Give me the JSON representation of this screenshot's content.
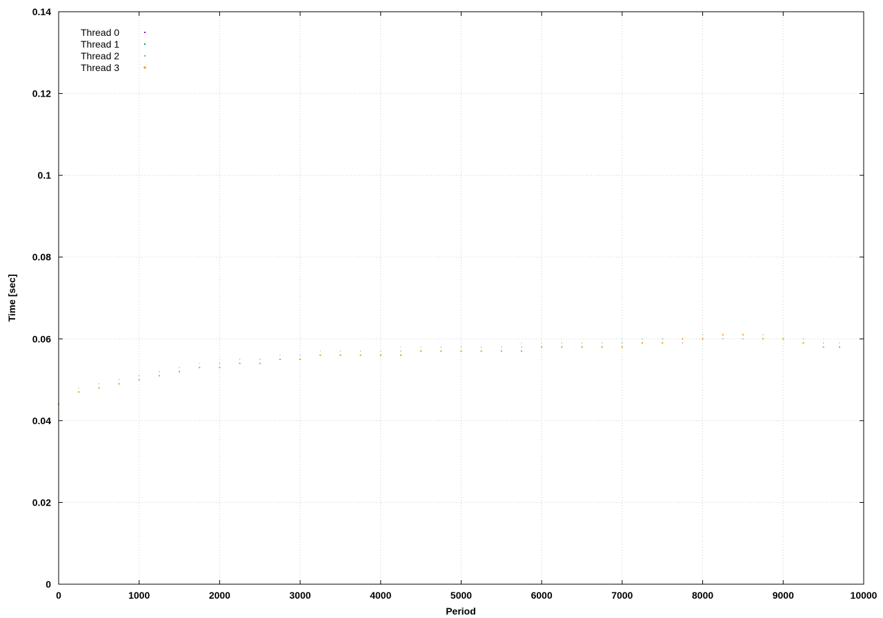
{
  "chart_data": {
    "type": "scatter",
    "title": "",
    "xlabel": "Period",
    "ylabel": "Time [sec]",
    "xlim": [
      0,
      10000
    ],
    "ylim": [
      0,
      0.14
    ],
    "x_ticks": [
      "0",
      "1000",
      "2000",
      "3000",
      "4000",
      "5000",
      "6000",
      "7000",
      "8000",
      "9000",
      "10000"
    ],
    "y_ticks": [
      "0",
      "0.02",
      "0.04",
      "0.06",
      "0.08",
      "0.1",
      "0.12",
      "0.14"
    ],
    "grid": true,
    "legend_position": "top-left",
    "series": [
      {
        "name": "Thread 0",
        "color": "#9400d3",
        "point_size": 1,
        "x": [
          0,
          250,
          500,
          750,
          1000,
          1250,
          1500,
          1750,
          2000,
          2250,
          2500,
          2750,
          3000,
          3250,
          3500,
          3750,
          4000,
          4250,
          4500,
          4750,
          5000,
          5250,
          5500,
          5750,
          6000,
          6250,
          6500,
          6750,
          7000,
          7250,
          7500,
          7750,
          8000,
          8250,
          8500,
          8750,
          9000,
          9250,
          9500,
          9700
        ],
        "y": [
          0.044,
          0.047,
          0.048,
          0.049,
          0.05,
          0.051,
          0.052,
          0.053,
          0.053,
          0.054,
          0.055,
          0.055,
          0.055,
          0.056,
          0.056,
          0.056,
          0.056,
          0.057,
          0.057,
          0.057,
          0.057,
          0.057,
          0.057,
          0.058,
          0.058,
          0.058,
          0.058,
          0.058,
          0.059,
          0.059,
          0.059,
          0.059,
          0.06,
          0.06,
          0.06,
          0.06,
          0.06,
          0.059,
          0.058,
          0.058
        ]
      },
      {
        "name": "Thread 1",
        "color": "#009e73",
        "point_size": 1,
        "x": [
          0,
          250,
          500,
          750,
          1000,
          1250,
          1500,
          1750,
          2000,
          2250,
          2500,
          2750,
          3000,
          3250,
          3500,
          3750,
          4000,
          4250,
          4500,
          4750,
          5000,
          5250,
          5500,
          5750,
          6000,
          6250,
          6500,
          6750,
          7000,
          7250,
          7500,
          7750,
          8000,
          8250,
          8500,
          8750,
          9000,
          9250,
          9500,
          9700
        ],
        "y": [
          0.045,
          0.047,
          0.049,
          0.05,
          0.051,
          0.052,
          0.053,
          0.053,
          0.054,
          0.055,
          0.055,
          0.056,
          0.056,
          0.056,
          0.057,
          0.057,
          0.057,
          0.057,
          0.057,
          0.058,
          0.058,
          0.058,
          0.058,
          0.058,
          0.058,
          0.059,
          0.059,
          0.059,
          0.059,
          0.06,
          0.06,
          0.06,
          0.061,
          0.061,
          0.061,
          0.061,
          0.06,
          0.06,
          0.059,
          0.059
        ]
      },
      {
        "name": "Thread 2",
        "color": "#56b4e9",
        "point_size": 1,
        "x": [
          0,
          250,
          500,
          750,
          1000,
          1250,
          1500,
          1750,
          2000,
          2250,
          2500,
          2750,
          3000,
          3250,
          3500,
          3750,
          4000,
          4250,
          4500,
          4750,
          5000,
          5250,
          5500,
          5750,
          6000,
          6250,
          6500,
          6750,
          7000,
          7250,
          7500,
          7750,
          8000,
          8250,
          8500,
          8750,
          9000,
          9250,
          9500,
          9700
        ],
        "y": [
          0.045,
          0.048,
          0.049,
          0.05,
          0.051,
          0.052,
          0.053,
          0.054,
          0.054,
          0.055,
          0.055,
          0.056,
          0.056,
          0.057,
          0.057,
          0.057,
          0.057,
          0.058,
          0.058,
          0.058,
          0.058,
          0.058,
          0.058,
          0.059,
          0.059,
          0.059,
          0.059,
          0.059,
          0.06,
          0.06,
          0.06,
          0.06,
          0.061,
          0.061,
          0.061,
          0.061,
          0.06,
          0.06,
          0.059,
          0.059
        ]
      },
      {
        "name": "Thread 3",
        "color": "#e69f00",
        "point_size": 2,
        "x": [
          0,
          250,
          500,
          750,
          1000,
          1250,
          1500,
          1750,
          2000,
          2250,
          2500,
          2750,
          3000,
          3250,
          3500,
          3750,
          4000,
          4250,
          4500,
          4750,
          5000,
          5250,
          5500,
          5750,
          6000,
          6250,
          6500,
          6750,
          7000,
          7250,
          7500,
          7750,
          8000,
          8250,
          8500,
          8750,
          9000,
          9250,
          9500,
          9700
        ],
        "y": [
          0.044,
          0.047,
          0.048,
          0.049,
          0.05,
          0.051,
          0.052,
          0.053,
          0.053,
          0.054,
          0.054,
          0.055,
          0.055,
          0.056,
          0.056,
          0.056,
          0.056,
          0.056,
          0.057,
          0.057,
          0.057,
          0.057,
          0.057,
          0.057,
          0.058,
          0.058,
          0.058,
          0.058,
          0.058,
          0.059,
          0.059,
          0.06,
          0.06,
          0.061,
          0.061,
          0.06,
          0.06,
          0.059,
          0.058,
          0.058
        ]
      }
    ]
  }
}
